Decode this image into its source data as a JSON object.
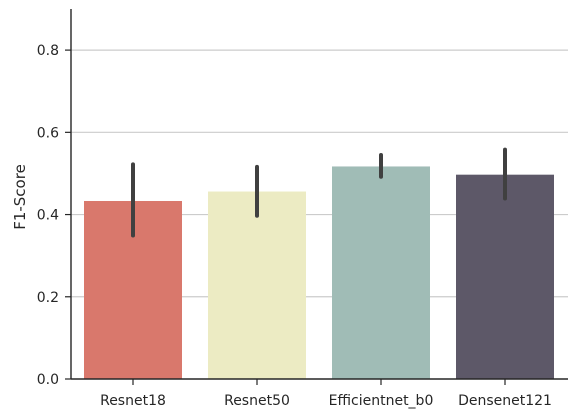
{
  "chart_data": {
    "type": "bar",
    "title": "",
    "xlabel": "",
    "ylabel": "F1-Score",
    "categories": [
      "Resnet18",
      "Resnet50",
      "Efficientnet_b0",
      "Densenet121"
    ],
    "values": [
      0.433,
      0.456,
      0.517,
      0.497
    ],
    "error_low": [
      0.349,
      0.397,
      0.492,
      0.439
    ],
    "error_high": [
      0.522,
      0.516,
      0.545,
      0.558
    ],
    "colors": [
      "#d9786c",
      "#ecebc3",
      "#a0bcb6",
      "#5d5868"
    ],
    "error_color": "#404040",
    "ylim": [
      0.0,
      0.9
    ],
    "yticks": [
      0.0,
      0.2,
      0.4,
      0.6,
      0.8
    ],
    "ytick_labels": [
      "0.0",
      "0.2",
      "0.4",
      "0.6",
      "0.8"
    ],
    "grid": "horizontal",
    "legend": "none"
  }
}
